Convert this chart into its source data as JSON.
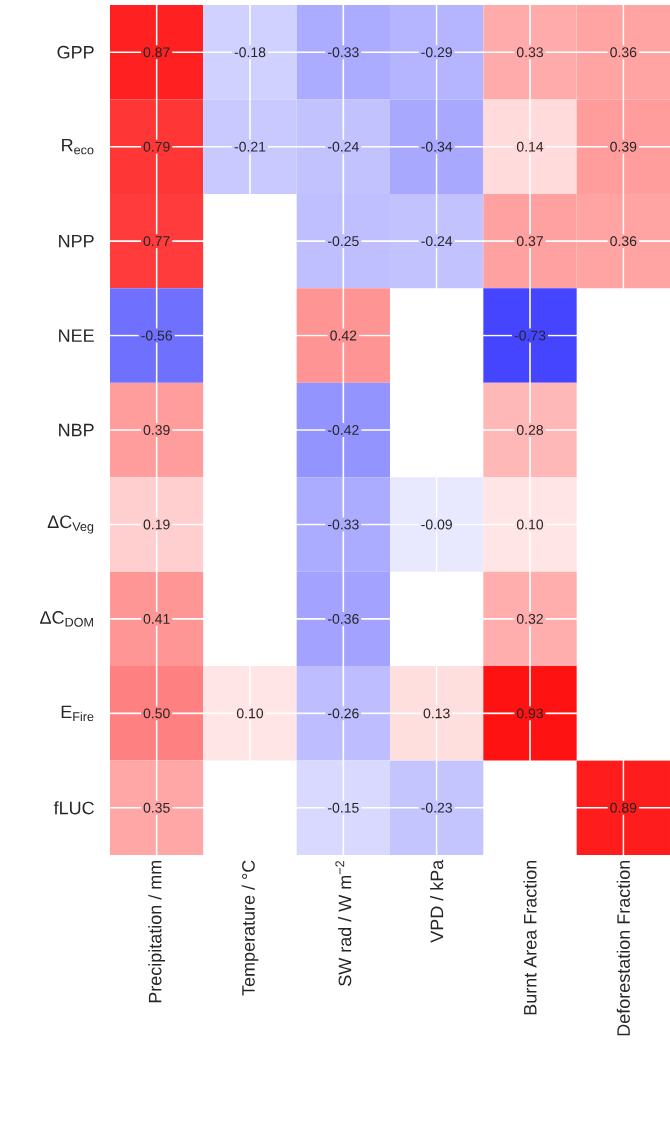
{
  "chart_data": {
    "type": "heatmap",
    "categories": [
      "Precipitation / mm",
      "Temperature / °C",
      "SW rad / W m$^{−2}$",
      "VPD / kPa",
      "Burnt Area Fraction",
      "Deforestation Fraction"
    ],
    "y_categories": [
      "GPP",
      "R$_{eco}$",
      "NPP",
      "NEE",
      "NBP",
      "ΔC$_{Veg}$",
      "ΔC$_{DOM}$",
      "E$_{Fire}$",
      "fLUC"
    ],
    "cells": [
      [
        0.87,
        -0.18,
        -0.33,
        -0.29,
        0.33,
        0.36
      ],
      [
        0.79,
        -0.21,
        -0.24,
        -0.34,
        0.14,
        0.39
      ],
      [
        0.77,
        null,
        -0.25,
        -0.24,
        0.37,
        0.36
      ],
      [
        -0.56,
        null,
        0.42,
        null,
        -0.73,
        null
      ],
      [
        0.39,
        null,
        -0.42,
        null,
        0.28,
        null
      ],
      [
        0.19,
        null,
        -0.33,
        -0.09,
        0.1,
        null
      ],
      [
        0.41,
        null,
        -0.36,
        null,
        0.32,
        null
      ],
      [
        0.5,
        0.1,
        -0.26,
        0.13,
        0.93,
        null
      ],
      [
        0.35,
        null,
        -0.15,
        -0.23,
        null,
        0.89
      ]
    ],
    "cell_labels": [
      [
        "0.87",
        "-0.18",
        "-0.33",
        "-0.29",
        "0.33",
        "0.36"
      ],
      [
        "0.79",
        "-0.21",
        "-0.24",
        "-0.34",
        "0.14",
        "0.39"
      ],
      [
        "0.77",
        null,
        "-0.25",
        "-0.24",
        "0.37",
        "0.36"
      ],
      [
        "-0.56",
        null,
        "0.42",
        null,
        "-0.73",
        null
      ],
      [
        "0.39",
        null,
        "-0.42",
        null,
        "0.28",
        null
      ],
      [
        "0.19",
        null,
        "-0.33",
        "-0.09",
        "0.10",
        null
      ],
      [
        "0.41",
        null,
        "-0.36",
        null,
        "0.32",
        null
      ],
      [
        "0.50",
        "0.10",
        "-0.26",
        "0.13",
        "0.93",
        null
      ],
      [
        "0.35",
        null,
        "-0.15",
        "-0.23",
        null,
        "0.89"
      ]
    ],
    "grid": true
  }
}
